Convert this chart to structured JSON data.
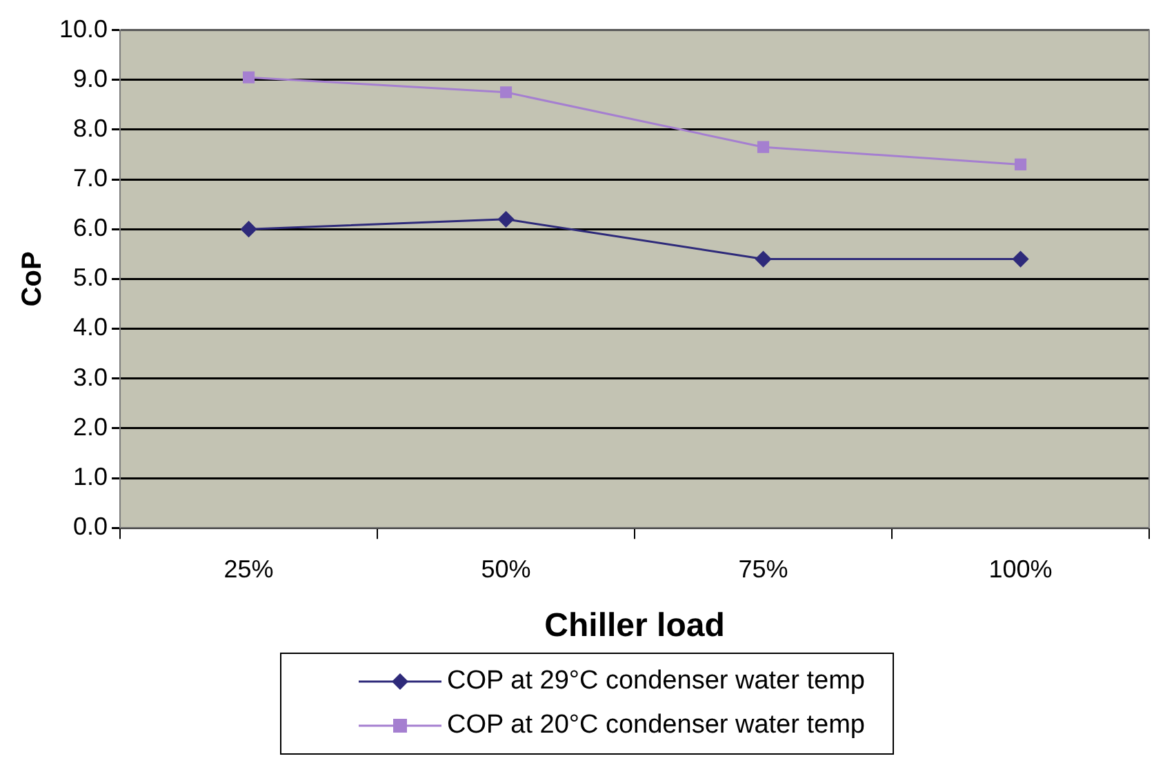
{
  "chart_data": {
    "type": "line",
    "xlabel": "Chiller load",
    "ylabel": "CoP",
    "categories": [
      "25%",
      "50%",
      "75%",
      "100%"
    ],
    "series": [
      {
        "name": "COP at 29°C condenser water temp",
        "color": "#2e2a7a",
        "marker": "diamond",
        "values": [
          6.0,
          6.2,
          5.4,
          5.4
        ]
      },
      {
        "name": "COP at 20°C condenser water temp",
        "color": "#a57fd0",
        "marker": "square",
        "values": [
          9.05,
          8.75,
          7.65,
          7.3
        ]
      }
    ],
    "ylim": [
      0,
      10
    ],
    "yticks": [
      {
        "value": 0,
        "label": "0.0"
      },
      {
        "value": 1,
        "label": "1.0"
      },
      {
        "value": 2,
        "label": "2.0"
      },
      {
        "value": 3,
        "label": "3.0"
      },
      {
        "value": 4,
        "label": "4.0"
      },
      {
        "value": 5,
        "label": "5.0"
      },
      {
        "value": 6,
        "label": "6.0"
      },
      {
        "value": 7,
        "label": "7.0"
      },
      {
        "value": 8,
        "label": "8.0"
      },
      {
        "value": 9,
        "label": "9.0"
      },
      {
        "value": 10,
        "label": "10.0"
      }
    ],
    "grid": "y",
    "legend": "bottom",
    "line_style": "solid"
  }
}
